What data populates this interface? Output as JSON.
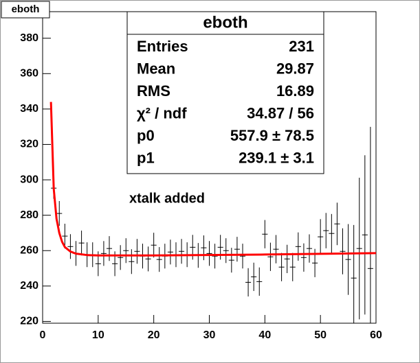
{
  "chart_data": {
    "type": "errorbar",
    "title": "eboth",
    "annotation": "xtalk added",
    "xlim": [
      0,
      60
    ],
    "xticks": [
      0,
      10,
      20,
      30,
      40,
      50,
      60
    ],
    "ylim": [
      219,
      395
    ],
    "yticks": [
      220,
      240,
      260,
      280,
      300,
      320,
      340,
      360,
      380
    ],
    "color": "#000000",
    "x": [
      2,
      3,
      4,
      5,
      6,
      7,
      8,
      9,
      10,
      11,
      12,
      13,
      14,
      15,
      16,
      17,
      18,
      19,
      20,
      21,
      22,
      23,
      24,
      25,
      26,
      27,
      28,
      29,
      30,
      31,
      32,
      33,
      34,
      35,
      36,
      37,
      38,
      39,
      40,
      41,
      42,
      43,
      44,
      45,
      46,
      47,
      48,
      49,
      50,
      51,
      52,
      53,
      54,
      55,
      56,
      57,
      58,
      59
    ],
    "values": [
      295.3,
      281,
      268.2,
      262.3,
      258.4,
      264.3,
      257.7,
      257.7,
      252.6,
      258.4,
      261.2,
      252.6,
      256.1,
      260,
      253.8,
      259.6,
      256.9,
      255.3,
      263.1,
      255,
      256.9,
      259.2,
      257.7,
      259.6,
      257.7,
      261.9,
      257.3,
      261.6,
      258.4,
      256.9,
      261.9,
      260,
      254.6,
      260.8,
      256.9,
      242.1,
      245.2,
      242.5,
      269.3,
      256.5,
      260.8,
      250.7,
      255.3,
      250.7,
      262.3,
      256.1,
      261.2,
      253,
      267.8,
      271.3,
      269.7,
      275.1,
      259.6,
      255,
      244.5,
      261.2,
      268.9,
      249.9
    ],
    "errors": [
      6,
      7,
      7,
      7,
      7,
      7,
      7,
      7,
      7,
      7,
      7,
      7,
      7,
      7,
      7,
      7,
      7,
      7,
      7,
      7,
      7,
      7,
      7,
      7,
      7,
      7,
      7,
      7,
      7,
      7,
      7,
      7,
      7,
      7,
      7,
      8,
      8,
      8,
      8,
      8,
      8,
      8,
      8,
      8,
      8,
      8,
      8,
      8,
      10,
      10,
      11,
      12,
      13,
      20,
      30,
      40,
      45,
      80
    ],
    "fit": {
      "color": "#ff0000",
      "x": [
        1.5,
        2,
        2.5,
        3,
        3.5,
        4,
        5,
        6,
        8,
        10,
        20,
        40,
        60
      ],
      "values": [
        344,
        295,
        278,
        270,
        265,
        262,
        259.5,
        258.3,
        257.5,
        257.3,
        257.3,
        257.8,
        258.6
      ]
    },
    "stats_title": "eboth",
    "stats": [
      {
        "label": "Entries",
        "value": "231"
      },
      {
        "label": "Mean",
        "value": "29.87"
      },
      {
        "label": "RMS",
        "value": "16.89"
      },
      {
        "label": "χ² / ndf",
        "value": "34.87 / 56"
      },
      {
        "label": "p0",
        "value": "557.9 ± 78.5"
      },
      {
        "label": "p1",
        "value": "239.1 ± 3.1"
      }
    ]
  }
}
